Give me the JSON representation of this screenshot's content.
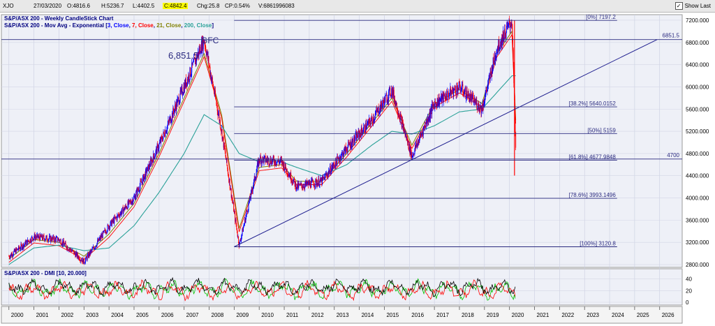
{
  "header": {
    "symbol": "XJO",
    "date": "27/03/2020",
    "open": "O:4816.6",
    "high": "H:5236.7",
    "low": "L:4402.5",
    "close": "C:4842.4",
    "change": "Chg:25.8",
    "change_pct": "CP:0.54%",
    "volume": "V:6861996083",
    "show_last": "Show Last"
  },
  "price_panel": {
    "title": "S&P/ASX 200 - Weekly CandleStick Chart",
    "subtitle_prefix": "S&P/ASX 200 - Mov Avg - Exponential",
    "ma_params": [
      "3, Close",
      "7, Close",
      "21, Close",
      "200, Close"
    ],
    "annotations": {
      "gfc": "GFC",
      "gfc_peak": "6,851.5",
      "right_label_top": "6851.5",
      "right_label_mid": "4700"
    },
    "fib_levels": [
      {
        "label": "[0%] 7197.2",
        "value": 7197.2
      },
      {
        "label": "[38.2%] 5640.0152",
        "value": 5640.0152
      },
      {
        "label": "[50%] 5159",
        "value": 5159
      },
      {
        "label": "[61.8%] 4677.9848",
        "value": 4677.9848
      },
      {
        "label": "[78.6%] 3993.1496",
        "value": 3993.1496
      },
      {
        "label": "[100%] 3120.8",
        "value": 3120.8
      }
    ],
    "horizontal_lines": [
      6851.5,
      4700
    ],
    "y_ticks": [
      "7200.000",
      "6800.000",
      "6400.000",
      "6000.000",
      "5600.000",
      "5200.000",
      "4800.000",
      "4400.000",
      "4000.000",
      "3600.000",
      "3200.000",
      "2800.000"
    ]
  },
  "dmi_panel": {
    "title": "S&P/ASX 200 - DMI [10, 20.000]",
    "y_ticks": [
      "40",
      "20",
      "0"
    ]
  },
  "x_axis": {
    "years": [
      "2000",
      "2001",
      "2002",
      "2003",
      "2004",
      "2005",
      "2006",
      "2007",
      "2008",
      "2009",
      "2010",
      "2011",
      "2012",
      "2013",
      "2014",
      "2015",
      "2016",
      "2017",
      "2018",
      "2019",
      "2020",
      "2021",
      "2022",
      "2023",
      "2024",
      "2025",
      "2026"
    ]
  },
  "chart_data": {
    "type": "line",
    "title": "S&P/ASX 200 - Weekly CandleStick Chart",
    "x": [
      2000,
      2001,
      2002,
      2003,
      2004,
      2005,
      2006,
      2007,
      2007.8,
      2008.5,
      2009.2,
      2010,
      2010.9,
      2011.5,
      2012.5,
      2013.5,
      2014.5,
      2015.3,
      2016.1,
      2017,
      2018,
      2018.9,
      2019.5,
      2020.1,
      2020.25
    ],
    "series": [
      {
        "name": "",
        "values": [
          2950,
          3300,
          3250,
          2850,
          3500,
          4000,
          4950,
          6000,
          6851.5,
          5200,
          3150,
          4700,
          4650,
          4200,
          4300,
          4900,
          5400,
          5950,
          4750,
          5700,
          6000,
          5600,
          6700,
          7197.2,
          4842.4
        ]
      },
      {
        "name": "",
        "values": [
          2900,
          3250,
          3200,
          2950,
          3350,
          3900,
          4800,
          5800,
          6600,
          5500,
          3450,
          4550,
          4600,
          4300,
          4300,
          4800,
          5350,
          5800,
          4950,
          5700,
          5950,
          5700,
          6600,
          7000,
          5400
        ]
      },
      {
        "name": "",
        "values": [
          2800,
          3100,
          3150,
          3050,
          3100,
          3500,
          4100,
          4800,
          5500,
          5300,
          4800,
          4650,
          4650,
          4550,
          4400,
          4600,
          4950,
          5200,
          5150,
          5300,
          5550,
          5600,
          5900,
          6200,
          6200
        ]
      }
    ],
    "xlim": [
      1999.7,
      2026.9
    ],
    "ylim": [
      2750,
      7300
    ],
    "xlabel": "",
    "ylabel": ""
  },
  "colors": {
    "background": "#ffffff",
    "panel_bg": "#eef0f7",
    "bull": "#0000ff",
    "bear": "#ff0000",
    "ma3": "#0000ff",
    "ma7": "#ff0000",
    "ma21": "#808000",
    "ma200": "#2aa198",
    "trend_line": "#1f1f8f",
    "fib_line": "#2b2b80",
    "dmi_pos": "#00c000",
    "dmi_neg": "#ff0000",
    "adx": "#000000"
  }
}
